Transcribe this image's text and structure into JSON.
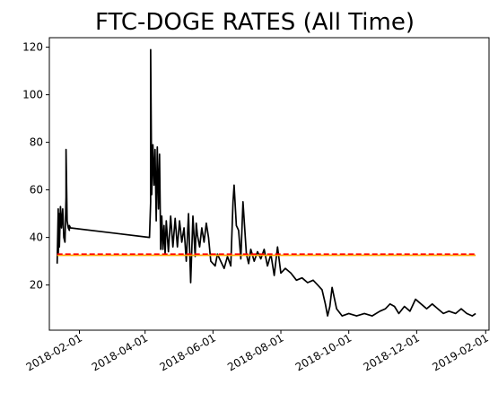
{
  "chart_data": {
    "type": "line",
    "title": "FTC-DOGE RATES (All Time)",
    "xlabel": "",
    "ylabel": "",
    "x_axis": "date",
    "xlim": [
      "2018-01-05",
      "2019-02-04"
    ],
    "ylim": [
      1,
      124
    ],
    "xticks": [
      "2018-02-01",
      "2018-04-01",
      "2018-06-01",
      "2018-08-01",
      "2018-10-01",
      "2018-12-01",
      "2019-02-01"
    ],
    "yticks": [
      20,
      40,
      60,
      80,
      100,
      120
    ],
    "grid": false,
    "legend": "none",
    "series": [
      {
        "color": "#000000",
        "style": "solid",
        "x": [
          "2018-01-12",
          "2018-01-13",
          "2018-01-13",
          "2018-01-14",
          "2018-01-14",
          "2018-01-15",
          "2018-01-16",
          "2018-01-17",
          "2018-01-18",
          "2018-01-19",
          "2018-01-20",
          "2018-01-20",
          "2018-01-21",
          "2018-01-22",
          "2018-01-23",
          "2018-01-23",
          "2018-01-24",
          "2018-04-05",
          "2018-04-06",
          "2018-04-06",
          "2018-04-07",
          "2018-04-08",
          "2018-04-09",
          "2018-04-10",
          "2018-04-11",
          "2018-04-12",
          "2018-04-13",
          "2018-04-14",
          "2018-04-15",
          "2018-04-16",
          "2018-04-17",
          "2018-04-18",
          "2018-04-19",
          "2018-04-20",
          "2018-04-22",
          "2018-04-24",
          "2018-04-26",
          "2018-04-28",
          "2018-04-30",
          "2018-05-02",
          "2018-05-04",
          "2018-05-06",
          "2018-05-08",
          "2018-05-10",
          "2018-05-12",
          "2018-05-14",
          "2018-05-16",
          "2018-05-17",
          "2018-05-18",
          "2018-05-20",
          "2018-05-22",
          "2018-05-24",
          "2018-05-26",
          "2018-05-28",
          "2018-05-30",
          "2018-06-01",
          "2018-06-03",
          "2018-06-05",
          "2018-06-08",
          "2018-06-11",
          "2018-06-14",
          "2018-06-17",
          "2018-06-19",
          "2018-06-20",
          "2018-06-22",
          "2018-06-24",
          "2018-06-26",
          "2018-06-28",
          "2018-07-01",
          "2018-07-03",
          "2018-07-05",
          "2018-07-08",
          "2018-07-11",
          "2018-07-14",
          "2018-07-17",
          "2018-07-20",
          "2018-07-23",
          "2018-07-26",
          "2018-07-29",
          "2018-08-01",
          "2018-08-05",
          "2018-08-10",
          "2018-08-15",
          "2018-08-20",
          "2018-08-25",
          "2018-08-30",
          "2018-09-03",
          "2018-09-07",
          "2018-09-10",
          "2018-09-12",
          "2018-09-14",
          "2018-09-16",
          "2018-09-20",
          "2018-09-25",
          "2018-10-01",
          "2018-10-08",
          "2018-10-15",
          "2018-10-22",
          "2018-10-29",
          "2018-11-03",
          "2018-11-07",
          "2018-11-11",
          "2018-11-15",
          "2018-11-20",
          "2018-11-25",
          "2018-11-30",
          "2018-12-05",
          "2018-12-10",
          "2018-12-15",
          "2018-12-20",
          "2018-12-25",
          "2018-12-30",
          "2019-01-05",
          "2019-01-10",
          "2019-01-15",
          "2019-01-20",
          "2019-01-23"
        ],
        "y": [
          29,
          52,
          33,
          50,
          36,
          53,
          44,
          52,
          40,
          38,
          57,
          77,
          47,
          44,
          43,
          45,
          44,
          40,
          55,
          119,
          58,
          79,
          62,
          77,
          47,
          78,
          52,
          75,
          35,
          49,
          35,
          45,
          33,
          47,
          34,
          49,
          36,
          48,
          36,
          47,
          38,
          44,
          30,
          50,
          21,
          49,
          32,
          46,
          41,
          36,
          44,
          38,
          46,
          40,
          30,
          29,
          28,
          33,
          30,
          27,
          32,
          28,
          55,
          62,
          45,
          43,
          31,
          55,
          33,
          29,
          35,
          30,
          34,
          31,
          35,
          28,
          33,
          24,
          36,
          25,
          27,
          25,
          22,
          23,
          21,
          22,
          20,
          18,
          12,
          7,
          11,
          19,
          10,
          7,
          8,
          7,
          8,
          7,
          9,
          10,
          12,
          11,
          8,
          11,
          9,
          14,
          12,
          10,
          12,
          10,
          8,
          9,
          8,
          10,
          8,
          7,
          8
        ]
      },
      {
        "color": "#ffa500",
        "style": "solid",
        "x": [
          "2018-01-12",
          "2019-01-23"
        ],
        "y": [
          32.5,
          32.5
        ]
      },
      {
        "color": "#ff0000",
        "style": "dashed",
        "x": [
          "2018-01-12",
          "2019-01-23"
        ],
        "y": [
          33,
          33
        ]
      }
    ]
  }
}
